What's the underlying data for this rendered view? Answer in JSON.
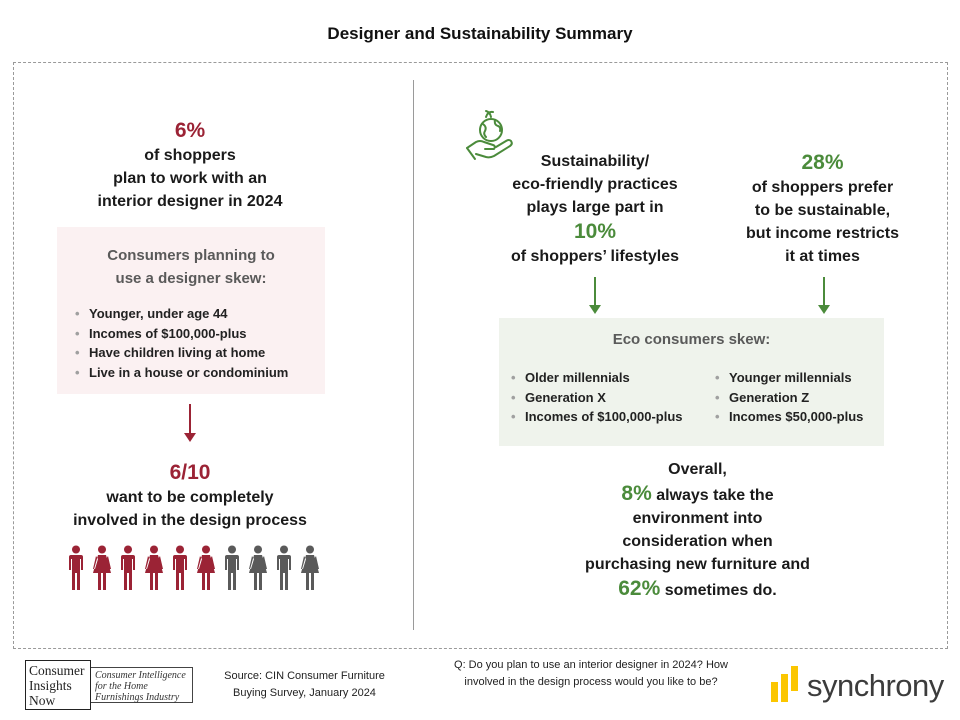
{
  "title": "Designer and Sustainability  Summary",
  "left": {
    "stat_value": "6%",
    "stat_text": [
      "of shoppers",
      "plan to work with an",
      "interior designer in 2024"
    ],
    "box_heading": [
      "Consumers planning to",
      "use a designer skew:"
    ],
    "box_bullets": [
      "Younger, under age 44",
      "Incomes of $100,000-plus",
      "Have children living at home",
      "Live in a house or condominium"
    ],
    "involved_value": "6/10",
    "involved_text": [
      "want to be completely",
      "involved in the design process"
    ],
    "people_icons": {
      "total": 10,
      "highlighted": 6,
      "icon": "person-icon",
      "highlight_color": "#9b2335",
      "other_color": "#5a5a5a"
    }
  },
  "right": {
    "icon": "eco-hand-globe-icon",
    "sust_text_before": [
      "Sustainability/",
      "eco-friendly practices",
      "plays large part in"
    ],
    "sust_value": "10%",
    "sust_text_after": "of shoppers’ lifestyles",
    "stat28_value": "28%",
    "stat28_text": [
      "of shoppers prefer",
      "to be sustainable,",
      "but income restricts",
      "it at times"
    ],
    "box_heading": "Eco consumers skew:",
    "col1": [
      "Older millennials",
      "Generation X",
      "Incomes of $100,000-plus"
    ],
    "col2": [
      "Younger millennials",
      "Generation Z",
      "Incomes $50,000-plus"
    ],
    "overall_label": "Overall,",
    "overall_value1": "8%",
    "overall_text1": " always take the",
    "overall_lines": [
      "environment into",
      "consideration when",
      "purchasing new furniture and"
    ],
    "overall_value2": "62%",
    "overall_text2": " sometimes do."
  },
  "footer": {
    "cin_logo_left": [
      "Consumer",
      "Insights",
      "Now"
    ],
    "cin_logo_right": [
      "Consumer Intelligence",
      "for the Home",
      "Furnishings Industry"
    ],
    "source": [
      "Source:  CIN Consumer Furniture",
      "Buying Survey, January 2024"
    ],
    "question": [
      "Q: Do you plan to use an interior designer in 2024? How",
      "involved in the design process would you like to be?"
    ],
    "brand": "synchrony"
  },
  "colors": {
    "red": "#9b2335",
    "green": "#4b8b3b",
    "pink_box": "#fbf1f2",
    "green_box": "#eff3ec",
    "brand_yellow": "#fbc600"
  }
}
